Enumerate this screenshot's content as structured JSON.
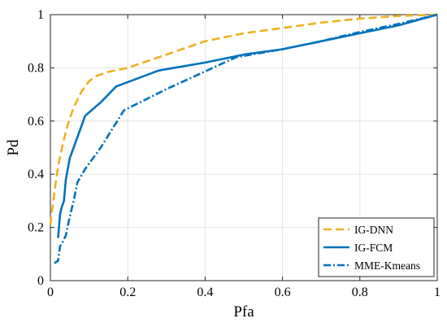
{
  "chart_data": {
    "type": "line",
    "title": "",
    "xlabel": "Pfa",
    "ylabel": "Pd",
    "xlim": [
      0,
      1
    ],
    "ylim": [
      0,
      1
    ],
    "xticks": [
      "0",
      "0.2",
      "0.4",
      "0.6",
      "0.8",
      "1"
    ],
    "yticks": [
      "0",
      "0.2",
      "0.4",
      "0.6",
      "0.8",
      "1"
    ],
    "grid": true,
    "legend_position": "bottom-right",
    "series": [
      {
        "name": "IG-DNN",
        "color": "#EDB120",
        "style": "dashed",
        "x": [
          0.0,
          0.005,
          0.01,
          0.015,
          0.02,
          0.03,
          0.04,
          0.05,
          0.06,
          0.07,
          0.08,
          0.1,
          0.12,
          0.15,
          0.2,
          0.3,
          0.4,
          0.5,
          0.6,
          0.7,
          0.8,
          0.9,
          1.0
        ],
        "y": [
          0.21,
          0.27,
          0.33,
          0.38,
          0.43,
          0.5,
          0.56,
          0.61,
          0.65,
          0.68,
          0.71,
          0.75,
          0.77,
          0.785,
          0.8,
          0.85,
          0.9,
          0.93,
          0.95,
          0.97,
          0.985,
          0.995,
          1.0
        ]
      },
      {
        "name": "IG-FCM",
        "color": "#0072BD",
        "style": "solid",
        "x": [
          0.02,
          0.025,
          0.03,
          0.035,
          0.04,
          0.045,
          0.05,
          0.06,
          0.07,
          0.08,
          0.09,
          0.13,
          0.17,
          0.28,
          0.4,
          0.5,
          0.6,
          0.7,
          0.8,
          0.9,
          1.0
        ],
        "y": [
          0.16,
          0.25,
          0.28,
          0.3,
          0.38,
          0.42,
          0.46,
          0.5,
          0.54,
          0.58,
          0.62,
          0.67,
          0.73,
          0.79,
          0.82,
          0.85,
          0.87,
          0.9,
          0.93,
          0.96,
          1.0
        ]
      },
      {
        "name": "MME-Kmeans",
        "color": "#0072BD",
        "style": "dashdot",
        "x": [
          0.01,
          0.015,
          0.02,
          0.025,
          0.03,
          0.04,
          0.05,
          0.06,
          0.07,
          0.09,
          0.13,
          0.19,
          0.3,
          0.48,
          0.6,
          0.7,
          0.8,
          0.9,
          1.0
        ],
        "y": [
          0.065,
          0.07,
          0.075,
          0.13,
          0.14,
          0.17,
          0.24,
          0.3,
          0.37,
          0.42,
          0.5,
          0.64,
          0.72,
          0.84,
          0.87,
          0.9,
          0.935,
          0.965,
          1.0
        ]
      }
    ]
  }
}
